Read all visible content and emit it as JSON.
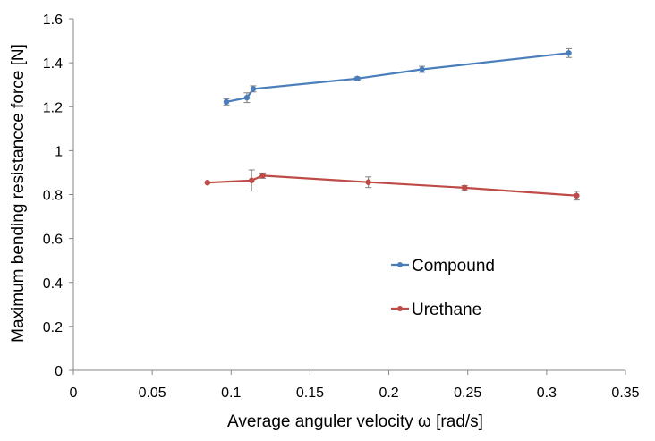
{
  "chart_data": {
    "type": "line",
    "title": "",
    "xlabel": "Average anguler velocity ω [rad/s]",
    "ylabel": "Maximum bending resistancce force [N]",
    "xlim": [
      0,
      0.35
    ],
    "ylim": [
      0,
      1.6
    ],
    "xticks": [
      0,
      0.05,
      0.1,
      0.15,
      0.2,
      0.25,
      0.3,
      0.35
    ],
    "xtick_labels": [
      "0",
      "0.05",
      "0.1",
      "0.15",
      "0.2",
      "0.25",
      "0.3",
      "0.35"
    ],
    "yticks": [
      0,
      0.2,
      0.4,
      0.6,
      0.8,
      1,
      1.2,
      1.4,
      1.6
    ],
    "ytick_labels": [
      "0",
      "0.2",
      "0.4",
      "0.6",
      "0.8",
      "1",
      "1.2",
      "1.4",
      "1.6"
    ],
    "grid": false,
    "legend_position": "center-right",
    "series": [
      {
        "name": "Compound",
        "color": "#4a7ebb",
        "x": [
          0.097,
          0.11,
          0.114,
          0.18,
          0.221,
          0.314
        ],
        "y": [
          1.222,
          1.241,
          1.281,
          1.328,
          1.37,
          1.444
        ],
        "yerr": [
          0.014,
          0.022,
          0.014,
          0.007,
          0.014,
          0.02
        ]
      },
      {
        "name": "Urethane",
        "color": "#be4b48",
        "x": [
          0.085,
          0.113,
          0.12,
          0.187,
          0.248,
          0.319
        ],
        "y": [
          0.854,
          0.864,
          0.886,
          0.856,
          0.831,
          0.795
        ],
        "yerr": [
          0.0,
          0.048,
          0.012,
          0.024,
          0.01,
          0.02
        ]
      }
    ]
  }
}
